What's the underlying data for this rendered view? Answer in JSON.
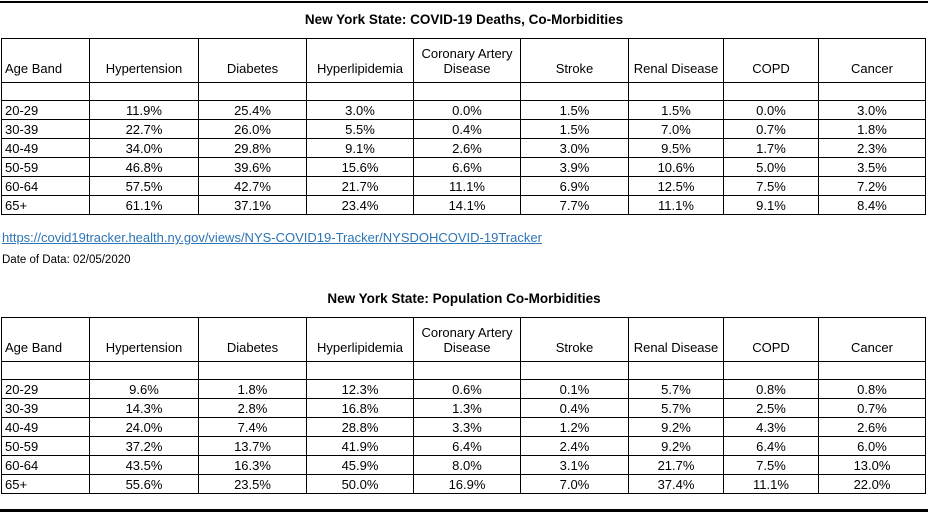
{
  "colors": {
    "link": "#2E75B6",
    "rule": "#000000",
    "table_border": "#000000",
    "text": "#000000",
    "background": "#FFFFFF"
  },
  "source": {
    "link_text": "https://covid19tracker.health.ny.gov/views/NYS-COVID19-Tracker/NYSDOHCOVID-19Tracker",
    "date_label": "Date of Data: 02/05/2020"
  },
  "chart_data": [
    {
      "type": "table",
      "title": "New York State: COVID-19 Deaths, Co-Morbidities",
      "columns": [
        "Age Band",
        "Hypertension",
        "Diabetes",
        "Hyperlipidemia",
        "Coronary Artery Disease",
        "Stroke",
        "Renal Disease",
        "COPD",
        "Cancer"
      ],
      "rows": [
        [
          "20-29",
          "11.9%",
          "25.4%",
          "3.0%",
          "0.0%",
          "1.5%",
          "1.5%",
          "0.0%",
          "3.0%"
        ],
        [
          "30-39",
          "22.7%",
          "26.0%",
          "5.5%",
          "0.4%",
          "1.5%",
          "7.0%",
          "0.7%",
          "1.8%"
        ],
        [
          "40-49",
          "34.0%",
          "29.8%",
          "9.1%",
          "2.6%",
          "3.0%",
          "9.5%",
          "1.7%",
          "2.3%"
        ],
        [
          "50-59",
          "46.8%",
          "39.6%",
          "15.6%",
          "6.6%",
          "3.9%",
          "10.6%",
          "5.0%",
          "3.5%"
        ],
        [
          "60-64",
          "57.5%",
          "42.7%",
          "21.7%",
          "11.1%",
          "6.9%",
          "12.5%",
          "7.5%",
          "7.2%"
        ],
        [
          "65+",
          "61.1%",
          "37.1%",
          "23.4%",
          "14.1%",
          "7.7%",
          "11.1%",
          "9.1%",
          "8.4%"
        ]
      ]
    },
    {
      "type": "table",
      "title": "New York State: Population Co-Morbidities",
      "columns": [
        "Age Band",
        "Hypertension",
        "Diabetes",
        "Hyperlipidemia",
        "Coronary Artery Disease",
        "Stroke",
        "Renal Disease",
        "COPD",
        "Cancer"
      ],
      "rows": [
        [
          "20-29",
          "9.6%",
          "1.8%",
          "12.3%",
          "0.6%",
          "0.1%",
          "5.7%",
          "0.8%",
          "0.8%"
        ],
        [
          "30-39",
          "14.3%",
          "2.8%",
          "16.8%",
          "1.3%",
          "0.4%",
          "5.7%",
          "2.5%",
          "0.7%"
        ],
        [
          "40-49",
          "24.0%",
          "7.4%",
          "28.8%",
          "3.3%",
          "1.2%",
          "9.2%",
          "4.3%",
          "2.6%"
        ],
        [
          "50-59",
          "37.2%",
          "13.7%",
          "41.9%",
          "6.4%",
          "2.4%",
          "9.2%",
          "6.4%",
          "6.0%"
        ],
        [
          "60-64",
          "43.5%",
          "16.3%",
          "45.9%",
          "8.0%",
          "3.1%",
          "21.7%",
          "7.5%",
          "13.0%"
        ],
        [
          "65+",
          "55.6%",
          "23.5%",
          "50.0%",
          "16.9%",
          "7.0%",
          "37.4%",
          "11.1%",
          "22.0%"
        ]
      ]
    }
  ]
}
